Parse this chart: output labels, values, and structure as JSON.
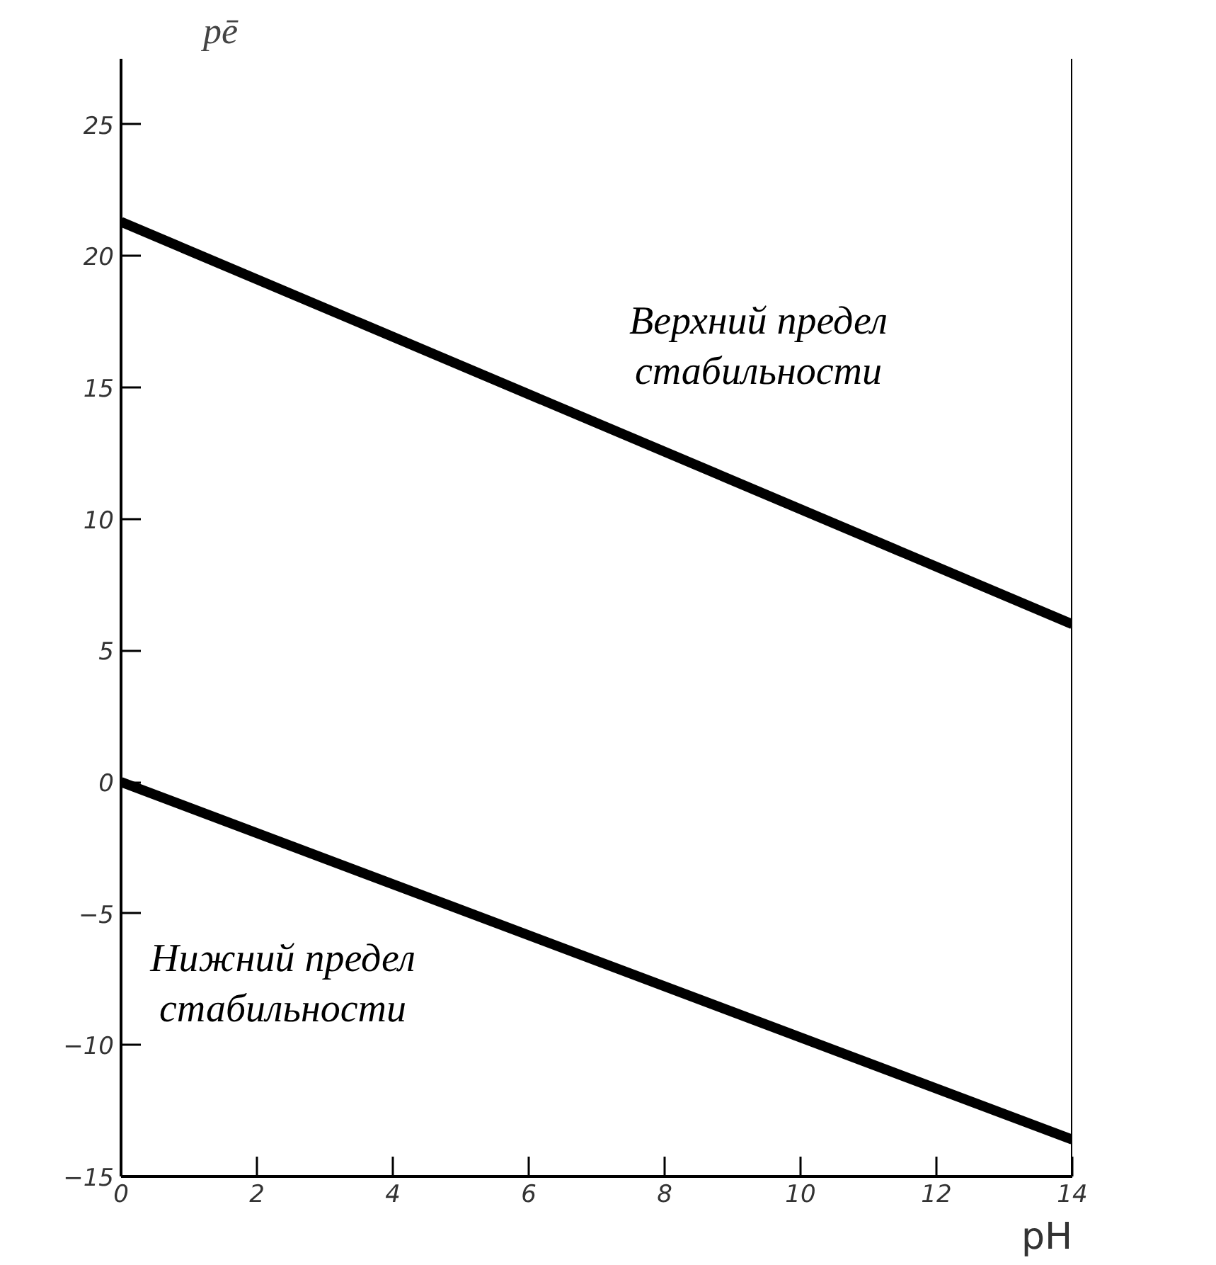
{
  "chart_data": {
    "type": "line",
    "xlabel": "pH",
    "ylabel": "pē",
    "x": [
      0,
      14
    ],
    "series": [
      {
        "color": "#000000",
        "values": [
          21.3,
          6.0
        ]
      },
      {
        "color": "#000000",
        "values": [
          0,
          -13.6
        ]
      }
    ],
    "xlim": [
      0,
      14
    ],
    "xticks": [
      0,
      2,
      4,
      6,
      8,
      10,
      12,
      14
    ],
    "ylim": [
      -15,
      27.5
    ],
    "yticks": [
      -15,
      -10,
      -5,
      0,
      5,
      10,
      15,
      20,
      25
    ],
    "grid": false,
    "marker": "none",
    "line_style": "solid",
    "ref_lines": [
      {
        "axis": "x",
        "value": 14,
        "color": "#000000",
        "line_style": "solid"
      }
    ],
    "annotations": [
      "Верхний предел\nстабильности",
      "Нижний предел\nстабильности"
    ]
  }
}
